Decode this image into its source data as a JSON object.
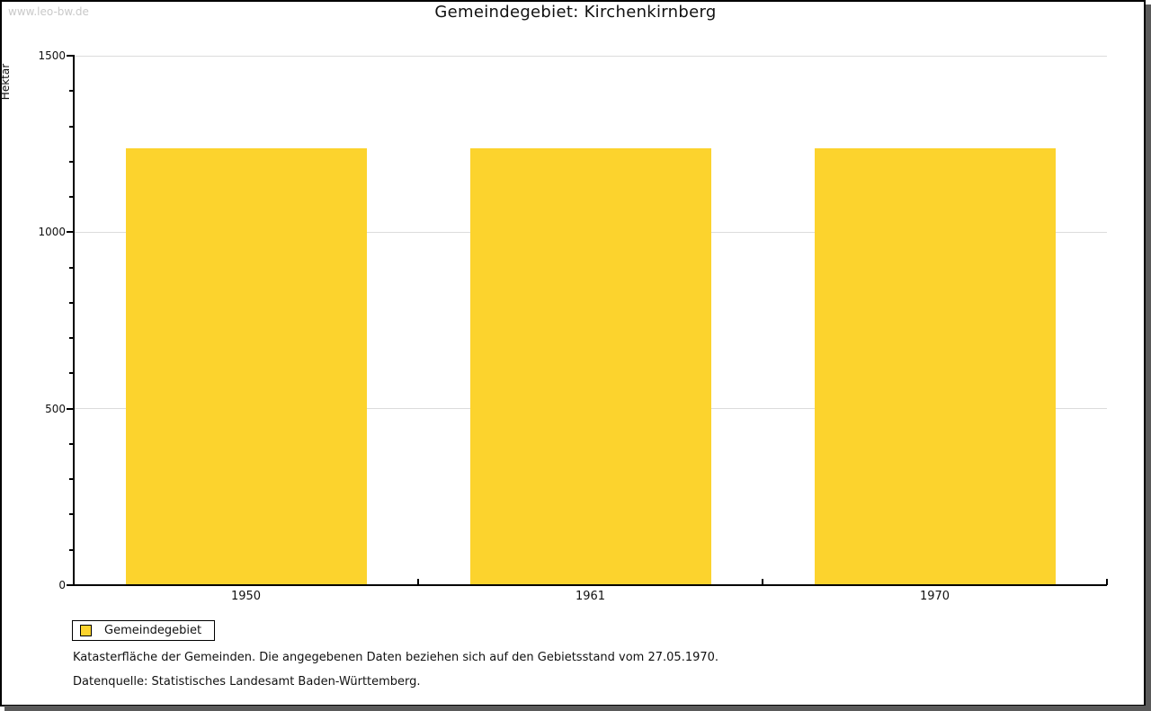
{
  "watermark": "www.leo-bw.de",
  "title": "Gemeindegebiet: Kirchenkirnberg",
  "chart_data": {
    "type": "bar",
    "title": "Gemeindegebiet: Kirchenkirnberg",
    "categories": [
      "1950",
      "1961",
      "1970"
    ],
    "series": [
      {
        "name": "Gemeindegebiet",
        "values": [
          1235,
          1235,
          1235
        ]
      }
    ],
    "ylabel": "Hektar",
    "xlabel": "",
    "ylim": [
      0,
      1500
    ],
    "ytick_major_interval": 500,
    "ytick_minor_interval": 100,
    "ytick_labels": [
      "0",
      "500",
      "1000",
      "1500"
    ],
    "grid": true,
    "gridline_color": "#dcdcdc",
    "bar_color": "#fcd32d",
    "legend_position": "bottom-left"
  },
  "legend": {
    "items": [
      {
        "label": "Gemeindegebiet",
        "color": "#fcd32d"
      }
    ]
  },
  "footnotes": {
    "line1": "Katasterfläche der Gemeinden. Die angegebenen Daten beziehen sich auf den Gebietsstand vom 27.05.1970.",
    "line2": "Datenquelle: Statistisches Landesamt Baden-Württemberg."
  }
}
